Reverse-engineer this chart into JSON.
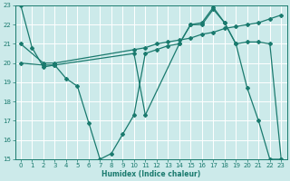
{
  "xlabel": "Humidex (Indice chaleur)",
  "bg_color": "#cceaea",
  "line_color": "#1a7a6e",
  "grid_color": "#ffffff",
  "xlim": [
    -0.5,
    23.5
  ],
  "ylim": [
    15,
    23
  ],
  "xticks": [
    0,
    1,
    2,
    3,
    4,
    5,
    6,
    7,
    8,
    9,
    10,
    11,
    12,
    13,
    14,
    15,
    16,
    17,
    18,
    19,
    20,
    21,
    22,
    23
  ],
  "yticks": [
    15,
    16,
    17,
    18,
    19,
    20,
    21,
    22,
    23
  ],
  "line1_x": [
    0,
    1,
    2,
    3,
    4,
    5,
    6,
    7,
    8,
    9,
    10,
    11,
    12,
    13,
    14,
    15,
    16,
    17,
    18,
    19,
    20,
    21,
    22,
    23
  ],
  "line1_y": [
    23,
    20.8,
    19.8,
    19.9,
    19.2,
    18.8,
    16.9,
    15.0,
    15.3,
    16.3,
    17.3,
    20.5,
    20.7,
    20.9,
    21.0,
    22.0,
    22.0,
    22.8,
    22.1,
    21.0,
    18.7,
    17.0,
    15.0,
    15.0
  ],
  "line2_x": [
    0,
    2,
    3,
    10,
    11,
    12,
    13,
    14,
    15,
    16,
    17,
    18,
    19,
    20,
    21,
    22,
    23
  ],
  "line2_y": [
    21.0,
    20.0,
    20.0,
    20.7,
    20.8,
    21.0,
    21.1,
    21.2,
    21.3,
    21.5,
    21.6,
    21.8,
    21.9,
    22.0,
    22.1,
    22.3,
    22.5
  ],
  "line3_x": [
    0,
    2,
    3,
    10,
    11,
    14,
    15,
    16,
    17,
    18,
    19,
    20,
    21,
    22,
    23
  ],
  "line3_y": [
    20.0,
    19.9,
    19.9,
    20.5,
    17.3,
    21.0,
    22.0,
    22.1,
    22.9,
    22.1,
    21.0,
    21.1,
    21.1,
    21.0,
    15.0
  ]
}
